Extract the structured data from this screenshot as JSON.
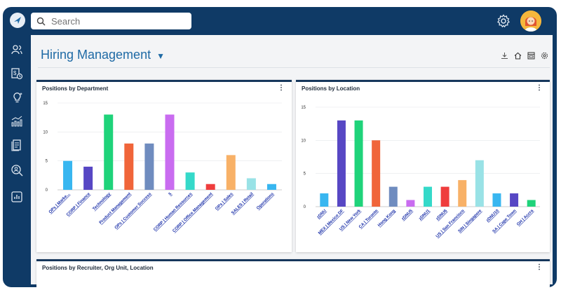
{
  "search": {
    "placeholder": "Search"
  },
  "page": {
    "title": "Hiring Management"
  },
  "cards": {
    "department": {
      "title": "Positions by Department"
    },
    "location": {
      "title": "Positions by Location"
    },
    "recruiter": {
      "title": "Positions by Recruiter, Org Unit, Location"
    }
  },
  "colors": {
    "nav": "#0f3a66",
    "accent": "#1f6aa5",
    "link": "#1a2fa8"
  },
  "chart_data": [
    {
      "type": "bar",
      "title": "Positions by Department",
      "categories": [
        "OPs | Marke...",
        "CORP | Finance",
        "Technology",
        "Product Management",
        "OPs | Customer Success",
        "5",
        "CORP | Human Resources",
        "CORP | Office Management",
        "OPs | Sales",
        "SALES | Retail",
        "Operations"
      ],
      "values": [
        5,
        4,
        13,
        8,
        8,
        13,
        3,
        1,
        6,
        2,
        1
      ],
      "colors": [
        "#38b6f0",
        "#5747c4",
        "#1fd37a",
        "#f0653a",
        "#6f8cbf",
        "#c96cf0",
        "#35d9c9",
        "#ef3d3d",
        "#f8b167",
        "#99e2e6",
        "#38b6f0"
      ],
      "yticks": [
        0,
        5,
        10,
        15
      ],
      "ylim": [
        0,
        15
      ]
    },
    {
      "type": "bar",
      "title": "Positions by Location",
      "categories": [
        "zDNU",
        "MEX | Mexico DF",
        "US | New York",
        "CA | Toronto",
        "Hong Kong",
        "zDNU5",
        "zDNU1",
        "zDNU6",
        "US | San Francisco",
        "SIN | Singapore",
        "zDNU10",
        "SA | Cape Town",
        "GH | Accra"
      ],
      "values": [
        2,
        13,
        13,
        10,
        3,
        1,
        3,
        3,
        4,
        7,
        2,
        2,
        1
      ],
      "colors": [
        "#38b6f0",
        "#5747c4",
        "#1fd37a",
        "#f0653a",
        "#6f8cbf",
        "#c96cf0",
        "#35d9c9",
        "#ef3d3d",
        "#f8b167",
        "#99e2e6",
        "#38b6f0",
        "#5747c4",
        "#1fd37a"
      ],
      "yticks": [
        0,
        5,
        10,
        15
      ],
      "ylim": [
        0,
        15
      ]
    }
  ]
}
